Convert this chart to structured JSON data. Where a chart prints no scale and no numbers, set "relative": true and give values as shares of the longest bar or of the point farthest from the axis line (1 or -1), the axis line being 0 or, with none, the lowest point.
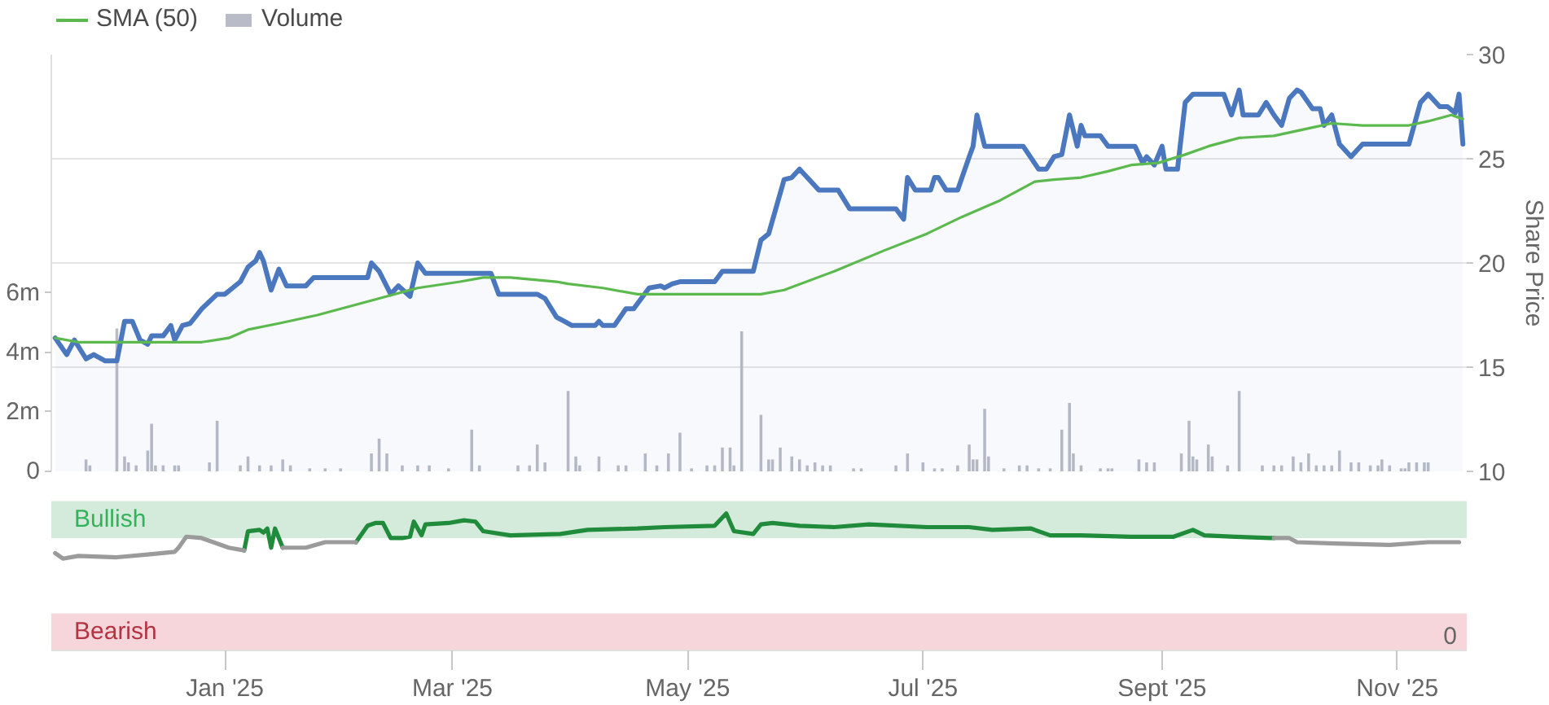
{
  "chart_data": [
    {
      "type": "line",
      "ylabel": "Share Price",
      "xlim": [
        "2024-11-17",
        "2025-11-19"
      ],
      "ylim": [
        10,
        30
      ],
      "yticks": [
        10,
        15,
        20,
        25,
        30
      ],
      "y2lim": [
        0,
        14
      ],
      "y2ticks": [
        {
          "value": 0,
          "label": "0"
        },
        {
          "value": 2,
          "label": "2m"
        },
        {
          "value": 4,
          "label": "4m"
        },
        {
          "value": 6,
          "label": "6m"
        }
      ],
      "grid": "y",
      "legend": "top left",
      "tick_labels": "y",
      "series": [
        {
          "type": "area",
          "color": "#4a77bd",
          "x": [
            "2024-11-18",
            "2024-11-21",
            "2024-11-23",
            "2024-11-26",
            "2024-11-28",
            "2024-12-01",
            "2024-12-04",
            "2024-12-06",
            "2024-12-08",
            "2024-12-10",
            "2024-12-12",
            "2024-12-13",
            "2024-12-16",
            "2024-12-18",
            "2024-12-19",
            "2024-12-21",
            "2024-12-23",
            "2024-12-26",
            "2024-12-30",
            "2025-01-01",
            "2025-01-03",
            "2025-01-05",
            "2025-01-07",
            "2025-01-09",
            "2025-01-10",
            "2025-01-11",
            "2025-01-13",
            "2025-01-15",
            "2025-01-17",
            "2025-01-22",
            "2025-01-24",
            "2025-02-07",
            "2025-02-08",
            "2025-02-10",
            "2025-02-13",
            "2025-02-15",
            "2025-02-18",
            "2025-02-20",
            "2025-02-22",
            "2025-03-07",
            "2025-03-11",
            "2025-03-13",
            "2025-03-23",
            "2025-03-25",
            "2025-03-28",
            "2025-03-30",
            "2025-04-01",
            "2025-04-07",
            "2025-04-08",
            "2025-04-09",
            "2025-04-12",
            "2025-04-15",
            "2025-04-17",
            "2025-04-21",
            "2025-04-24",
            "2025-04-25",
            "2025-04-27",
            "2025-04-29",
            "2025-05-08",
            "2025-05-10",
            "2025-05-18",
            "2025-05-20",
            "2025-05-22",
            "2025-05-26",
            "2025-05-28",
            "2025-05-30",
            "2025-06-01",
            "2025-06-04",
            "2025-06-09",
            "2025-06-12",
            "2025-06-24",
            "2025-06-26",
            "2025-06-27",
            "2025-06-29",
            "2025-07-03",
            "2025-07-04",
            "2025-07-05",
            "2025-07-07",
            "2025-07-10",
            "2025-07-13",
            "2025-07-14",
            "2025-07-15",
            "2025-07-17",
            "2025-07-27",
            "2025-07-31",
            "2025-08-02",
            "2025-08-04",
            "2025-08-06",
            "2025-08-08",
            "2025-08-10",
            "2025-08-11",
            "2025-08-12",
            "2025-08-16",
            "2025-08-18",
            "2025-08-25",
            "2025-08-27",
            "2025-08-28",
            "2025-08-30",
            "2025-09-01",
            "2025-09-02",
            "2025-09-05",
            "2025-09-07",
            "2025-09-09",
            "2025-09-17",
            "2025-09-19",
            "2025-09-21",
            "2025-09-22",
            "2025-09-26",
            "2025-09-28",
            "2025-09-30",
            "2025-10-02",
            "2025-10-04",
            "2025-10-06",
            "2025-10-07",
            "2025-10-10",
            "2025-10-12",
            "2025-10-13",
            "2025-10-15",
            "2025-10-17",
            "2025-10-20",
            "2025-10-23",
            "2025-11-04",
            "2025-11-07",
            "2025-11-09",
            "2025-11-12",
            "2025-11-14",
            "2025-11-16",
            "2025-11-17",
            "2025-11-18"
          ],
          "values": [
            16.4,
            15.6,
            16.3,
            15.4,
            15.6,
            15.3,
            15.3,
            17.2,
            17.2,
            16.3,
            16.1,
            16.5,
            16.5,
            17.0,
            16.3,
            17.0,
            17.1,
            17.8,
            18.5,
            18.5,
            18.8,
            19.1,
            19.8,
            20.1,
            20.5,
            20.1,
            18.7,
            19.7,
            18.9,
            18.9,
            19.3,
            19.3,
            20.0,
            19.6,
            18.5,
            18.9,
            18.4,
            20.0,
            19.5,
            19.5,
            19.5,
            18.5,
            18.5,
            18.3,
            17.4,
            17.2,
            17.0,
            17.0,
            17.2,
            17.0,
            17.0,
            17.8,
            17.8,
            18.8,
            18.9,
            18.8,
            19.0,
            19.1,
            19.1,
            19.6,
            19.6,
            21.1,
            21.4,
            24.0,
            24.1,
            24.5,
            24.1,
            23.5,
            23.5,
            22.6,
            22.6,
            22.1,
            24.1,
            23.5,
            23.5,
            24.1,
            24.1,
            23.5,
            23.5,
            25.1,
            25.6,
            27.1,
            25.6,
            25.6,
            24.5,
            24.5,
            25.1,
            25.2,
            27.1,
            25.6,
            26.6,
            26.1,
            26.1,
            25.6,
            25.6,
            24.8,
            25.1,
            24.7,
            25.6,
            24.5,
            24.5,
            27.7,
            28.1,
            28.1,
            27.1,
            28.3,
            27.1,
            27.1,
            27.7,
            27.1,
            26.6,
            27.9,
            28.3,
            28.2,
            27.4,
            27.4,
            26.6,
            27.1,
            25.7,
            25.1,
            25.7,
            25.7,
            27.7,
            28.1,
            27.5,
            27.5,
            27.2,
            28.1,
            25.7
          ]
        },
        {
          "name": "SMA (50)",
          "type": "line",
          "color": "#5cb94e",
          "x": [
            "2024-11-18",
            "2024-11-24",
            "2024-12-03",
            "2024-12-10",
            "2024-12-19",
            "2024-12-26",
            "2025-01-02",
            "2025-01-07",
            "2025-01-15",
            "2025-01-25",
            "2025-02-04",
            "2025-02-12",
            "2025-02-20",
            "2025-03-03",
            "2025-03-09",
            "2025-03-16",
            "2025-03-28",
            "2025-03-31",
            "2025-04-09",
            "2025-04-18",
            "2025-04-29",
            "2025-05-12",
            "2025-05-20",
            "2025-05-26",
            "2025-06-08",
            "2025-06-21",
            "2025-07-02",
            "2025-07-11",
            "2025-07-21",
            "2025-07-30",
            "2025-08-04",
            "2025-08-11",
            "2025-08-18",
            "2025-08-24",
            "2025-08-31",
            "2025-09-07",
            "2025-09-13",
            "2025-09-21",
            "2025-09-30",
            "2025-10-10",
            "2025-10-15",
            "2025-10-23",
            "2025-11-04",
            "2025-11-09",
            "2025-11-15",
            "2025-11-18"
          ],
          "values": [
            16.4,
            16.2,
            16.2,
            16.2,
            16.2,
            16.2,
            16.4,
            16.8,
            17.1,
            17.5,
            18.0,
            18.4,
            18.8,
            19.1,
            19.3,
            19.3,
            19.1,
            19.0,
            18.8,
            18.5,
            18.5,
            18.5,
            18.5,
            18.7,
            19.6,
            20.6,
            21.4,
            22.2,
            23.0,
            23.9,
            24.0,
            24.1,
            24.4,
            24.7,
            24.8,
            25.2,
            25.6,
            26.0,
            26.1,
            26.5,
            26.7,
            26.6,
            26.6,
            26.8,
            27.1,
            26.9
          ]
        },
        {
          "name": "Volume",
          "type": "bar",
          "axis": "y2",
          "color": "#b9bcc6",
          "x": [
            "2024-11-26",
            "2024-11-27",
            "2024-12-04",
            "2024-12-06",
            "2024-12-07",
            "2024-12-09",
            "2024-12-12",
            "2024-12-13",
            "2024-12-14",
            "2024-12-16",
            "2024-12-19",
            "2024-12-20",
            "2024-12-28",
            "2024-12-30",
            "2025-01-05",
            "2025-01-07",
            "2025-01-10",
            "2025-01-13",
            "2025-01-16",
            "2025-01-18",
            "2025-01-23",
            "2025-01-27",
            "2025-01-31",
            "2025-02-08",
            "2025-02-10",
            "2025-02-12",
            "2025-02-16",
            "2025-02-20",
            "2025-02-23",
            "2025-02-28",
            "2025-03-06",
            "2025-03-08",
            "2025-03-18",
            "2025-03-21",
            "2025-03-23",
            "2025-03-25",
            "2025-03-31",
            "2025-04-02",
            "2025-04-03",
            "2025-04-08",
            "2025-04-13",
            "2025-04-15",
            "2025-04-20",
            "2025-04-23",
            "2025-04-26",
            "2025-04-29",
            "2025-05-02",
            "2025-05-06",
            "2025-05-08",
            "2025-05-10",
            "2025-05-12",
            "2025-05-13",
            "2025-05-15",
            "2025-05-20",
            "2025-05-22",
            "2025-05-23",
            "2025-05-25",
            "2025-05-28",
            "2025-05-30",
            "2025-06-01",
            "2025-06-03",
            "2025-06-05",
            "2025-06-07",
            "2025-06-13",
            "2025-06-15",
            "2025-06-24",
            "2025-06-27",
            "2025-07-01",
            "2025-07-04",
            "2025-07-06",
            "2025-07-10",
            "2025-07-13",
            "2025-07-14",
            "2025-07-15",
            "2025-07-17",
            "2025-07-18",
            "2025-07-22",
            "2025-07-26",
            "2025-07-28",
            "2025-07-31",
            "2025-08-03",
            "2025-08-06",
            "2025-08-08",
            "2025-08-09",
            "2025-08-11",
            "2025-08-16",
            "2025-08-18",
            "2025-08-19",
            "2025-08-26",
            "2025-08-28",
            "2025-08-30",
            "2025-09-06",
            "2025-09-08",
            "2025-09-09",
            "2025-09-10",
            "2025-09-13",
            "2025-09-14",
            "2025-09-18",
            "2025-09-21",
            "2025-09-27",
            "2025-09-30",
            "2025-10-02",
            "2025-10-05",
            "2025-10-07",
            "2025-10-09",
            "2025-10-11",
            "2025-10-13",
            "2025-10-15",
            "2025-10-17",
            "2025-10-20",
            "2025-10-22",
            "2025-10-25",
            "2025-10-27",
            "2025-10-28",
            "2025-10-30",
            "2025-11-02",
            "2025-11-03",
            "2025-11-04",
            "2025-11-06",
            "2025-11-08",
            "2025-11-09"
          ],
          "values": [
            0.4,
            0.2,
            4.8,
            0.5,
            0.3,
            0.2,
            0.7,
            1.6,
            0.2,
            0.2,
            0.2,
            0.2,
            0.3,
            1.7,
            0.2,
            0.5,
            0.2,
            0.2,
            0.4,
            0.2,
            0.1,
            0.1,
            0.1,
            0.6,
            1.1,
            0.6,
            0.2,
            0.2,
            0.2,
            0.1,
            1.4,
            0.2,
            0.2,
            0.2,
            0.9,
            0.3,
            2.7,
            0.5,
            0.2,
            0.5,
            0.2,
            0.2,
            0.6,
            0.2,
            0.6,
            1.3,
            0.1,
            0.2,
            0.2,
            0.8,
            0.8,
            0.2,
            4.7,
            1.9,
            0.4,
            0.4,
            0.8,
            0.5,
            0.4,
            0.2,
            0.3,
            0.2,
            0.2,
            0.1,
            0.1,
            0.2,
            0.6,
            0.3,
            0.1,
            0.1,
            0.2,
            0.9,
            0.4,
            0.4,
            2.1,
            0.5,
            0.1,
            0.2,
            0.2,
            0.1,
            0.1,
            1.4,
            2.3,
            0.6,
            0.2,
            0.1,
            0.1,
            0.1,
            0.4,
            0.3,
            0.3,
            0.6,
            1.7,
            0.5,
            0.4,
            0.9,
            0.5,
            0.2,
            2.7,
            0.2,
            0.2,
            0.2,
            0.5,
            0.3,
            0.6,
            0.2,
            0.2,
            0.2,
            0.7,
            0.3,
            0.3,
            0.2,
            0.2,
            0.4,
            0.2,
            0.1,
            0.1,
            0.3,
            0.3,
            0.3,
            0.3
          ]
        }
      ]
    },
    {
      "type": "line",
      "relative": true,
      "xlim": [
        "2024-11-17",
        "2025-11-19"
      ],
      "xticks": [
        {
          "value": "2025-01-01",
          "label": "Jan '25"
        },
        {
          "value": "2025-03-01",
          "label": "Mar '25"
        },
        {
          "value": "2025-05-01",
          "label": "May '25"
        },
        {
          "value": "2025-07-01",
          "label": "Jul '25"
        },
        {
          "value": "2025-09-01",
          "label": "Sept '25"
        },
        {
          "value": "2025-11-01",
          "label": "Nov '25"
        }
      ],
      "x": [
        "2024-11-18",
        "2024-11-20",
        "2024-11-24",
        "2024-12-04",
        "2024-12-12",
        "2024-12-19",
        "2024-12-20",
        "2024-12-22",
        "2024-12-26",
        "2024-12-29",
        "2025-01-02",
        "2025-01-06",
        "2025-01-07",
        "2025-01-10",
        "2025-01-11",
        "2025-01-12",
        "2025-01-13",
        "2025-01-14",
        "2025-01-16",
        "2025-01-22",
        "2025-01-27",
        "2025-02-04",
        "2025-02-07",
        "2025-02-09",
        "2025-02-11",
        "2025-02-13",
        "2025-02-16",
        "2025-02-18",
        "2025-02-19",
        "2025-02-21",
        "2025-02-22",
        "2025-02-28",
        "2025-03-04",
        "2025-03-07",
        "2025-03-09",
        "2025-03-16",
        "2025-03-29",
        "2025-04-05",
        "2025-04-18",
        "2025-04-25",
        "2025-05-08",
        "2025-05-11",
        "2025-05-13",
        "2025-05-18",
        "2025-05-20",
        "2025-05-23",
        "2025-05-30",
        "2025-06-08",
        "2025-06-17",
        "2025-07-02",
        "2025-07-13",
        "2025-07-19",
        "2025-07-29",
        "2025-08-03",
        "2025-08-11",
        "2025-08-24",
        "2025-09-04",
        "2025-09-09",
        "2025-09-12",
        "2025-09-20",
        "2025-09-29",
        "2025-09-30",
        "2025-10-04",
        "2025-10-06",
        "2025-10-16",
        "2025-10-30",
        "2025-11-09",
        "2025-11-17"
      ],
      "series": [
        {
          "color": "#1f8b3b",
          "values": [
            null,
            null,
            null,
            null,
            null,
            null,
            null,
            null,
            null,
            null,
            null,
            0.73,
            0.87,
            0.88,
            0.86,
            0.89,
            0.75,
            0.89,
            0.75,
            null,
            null,
            0.79,
            0.91,
            0.93,
            0.93,
            0.82,
            0.82,
            0.83,
            0.94,
            0.84,
            0.92,
            0.93,
            0.95,
            0.94,
            0.87,
            0.84,
            0.85,
            0.88,
            0.89,
            0.9,
            0.91,
            1,
            0.87,
            0.85,
            0.92,
            0.93,
            0.91,
            0.9,
            0.92,
            0.9,
            0.9,
            0.88,
            0.89,
            0.84,
            0.84,
            0.83,
            0.83,
            0.88,
            0.84,
            0.83,
            0.82,
            0.82,
            null,
            null,
            null,
            null,
            null,
            null
          ]
        },
        {
          "color": "#9b9b9b",
          "values": [
            0.71,
            0.67,
            0.69,
            0.68,
            0.7,
            0.72,
            0.75,
            0.83,
            0.82,
            0.79,
            0.75,
            0.73,
            null,
            null,
            null,
            null,
            null,
            null,
            0.75,
            0.75,
            0.79,
            0.79,
            null,
            null,
            null,
            null,
            null,
            null,
            null,
            null,
            null,
            null,
            null,
            null,
            null,
            null,
            null,
            null,
            null,
            null,
            null,
            null,
            null,
            null,
            null,
            null,
            null,
            null,
            null,
            null,
            null,
            null,
            null,
            null,
            null,
            null,
            null,
            null,
            null,
            null,
            null,
            0.82,
            0.82,
            0.79,
            0.78,
            0.77,
            0.79,
            0.79
          ]
        }
      ],
      "bands": [
        {
          "axis": "y",
          "from": 0.82,
          "to": 1.09,
          "label": "Bullish",
          "color": "#d4ebdb"
        },
        {
          "axis": "y",
          "from": 0,
          "to": 0.27,
          "label": "Bearish",
          "color": "#f6d6da"
        }
      ],
      "annotations": [
        "0"
      ]
    }
  ]
}
